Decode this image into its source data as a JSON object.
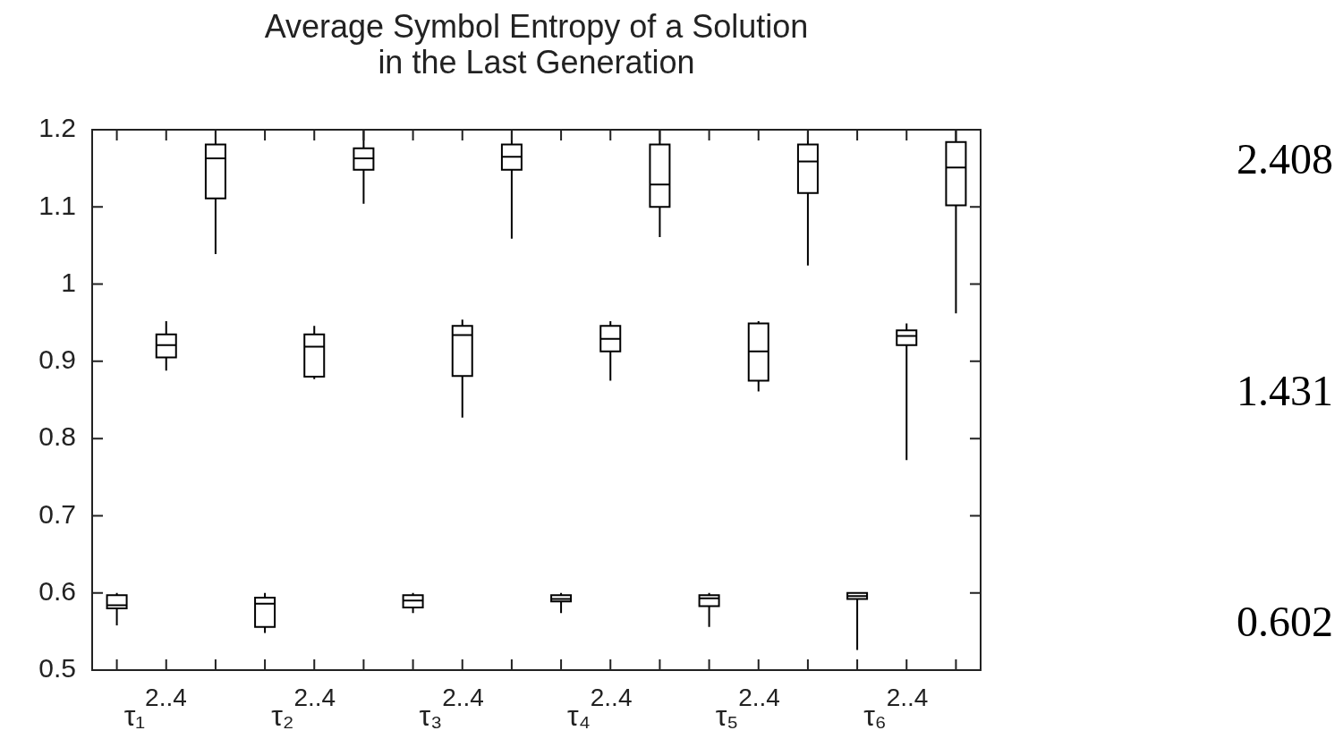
{
  "chart_data": {
    "type": "box",
    "title": "Average Symbol Entropy of a Solution\nin the Last Generation",
    "categories": [
      null,
      "τ₁$^{2..4}$",
      null,
      null,
      "τ₂$^{2..4}$",
      null,
      null,
      "τ₃$^{2..4}$",
      null,
      null,
      "τ₄$^{2..4}$",
      null,
      null,
      "τ₅$^{2..4}$",
      null,
      null,
      "τ₆$^{2..4}$",
      null
    ],
    "color": "#000000",
    "boxes": [
      {
        "low": 0.558,
        "q1": 0.58,
        "median": 0.584,
        "q3": 0.597,
        "high": 0.6
      },
      {
        "low": 0.888,
        "q1": 0.905,
        "median": 0.921,
        "q3": 0.935,
        "high": 0.952
      },
      {
        "low": 1.039,
        "q1": 1.111,
        "median": 1.163,
        "q3": 1.181,
        "high": 1.2
      },
      {
        "low": 0.548,
        "q1": 0.556,
        "median": 0.586,
        "q3": 0.594,
        "high": 0.6
      },
      {
        "low": 0.877,
        "q1": 0.88,
        "median": 0.919,
        "q3": 0.935,
        "high": 0.946
      },
      {
        "low": 1.104,
        "q1": 1.148,
        "median": 1.163,
        "q3": 1.176,
        "high": 1.2
      },
      {
        "low": 0.574,
        "q1": 0.581,
        "median": 0.59,
        "q3": 0.597,
        "high": 0.6
      },
      {
        "low": 0.827,
        "q1": 0.881,
        "median": 0.934,
        "q3": 0.946,
        "high": 0.954
      },
      {
        "low": 1.059,
        "q1": 1.148,
        "median": 1.165,
        "q3": 1.181,
        "high": 1.2
      },
      {
        "low": 0.574,
        "q1": 0.589,
        "median": 0.592,
        "q3": 0.597,
        "high": 0.6
      },
      {
        "low": 0.875,
        "q1": 0.913,
        "median": 0.929,
        "q3": 0.946,
        "high": 0.952
      },
      {
        "low": 1.061,
        "q1": 1.1,
        "median": 1.129,
        "q3": 1.181,
        "high": 1.2
      },
      {
        "low": 0.556,
        "q1": 0.583,
        "median": 0.593,
        "q3": 0.597,
        "high": 0.6
      },
      {
        "low": 0.861,
        "q1": 0.875,
        "median": 0.913,
        "q3": 0.949,
        "high": 0.952
      },
      {
        "low": 1.024,
        "q1": 1.118,
        "median": 1.159,
        "q3": 1.181,
        "high": 1.2
      },
      {
        "low": 0.526,
        "q1": 0.592,
        "median": 0.596,
        "q3": 0.6,
        "high": 0.6
      },
      {
        "low": 0.772,
        "q1": 0.921,
        "median": 0.933,
        "q3": 0.94,
        "high": 0.949
      },
      {
        "low": 0.962,
        "q1": 1.102,
        "median": 1.151,
        "q3": 1.184,
        "high": 1.2
      }
    ],
    "ylim": [
      0.5,
      1.2
    ],
    "yticks": [
      0.5,
      0.6,
      0.7,
      0.8,
      0.9,
      1,
      1.1,
      1.2
    ],
    "annotations": [
      "2.408",
      "1.431",
      "0.602"
    ]
  }
}
